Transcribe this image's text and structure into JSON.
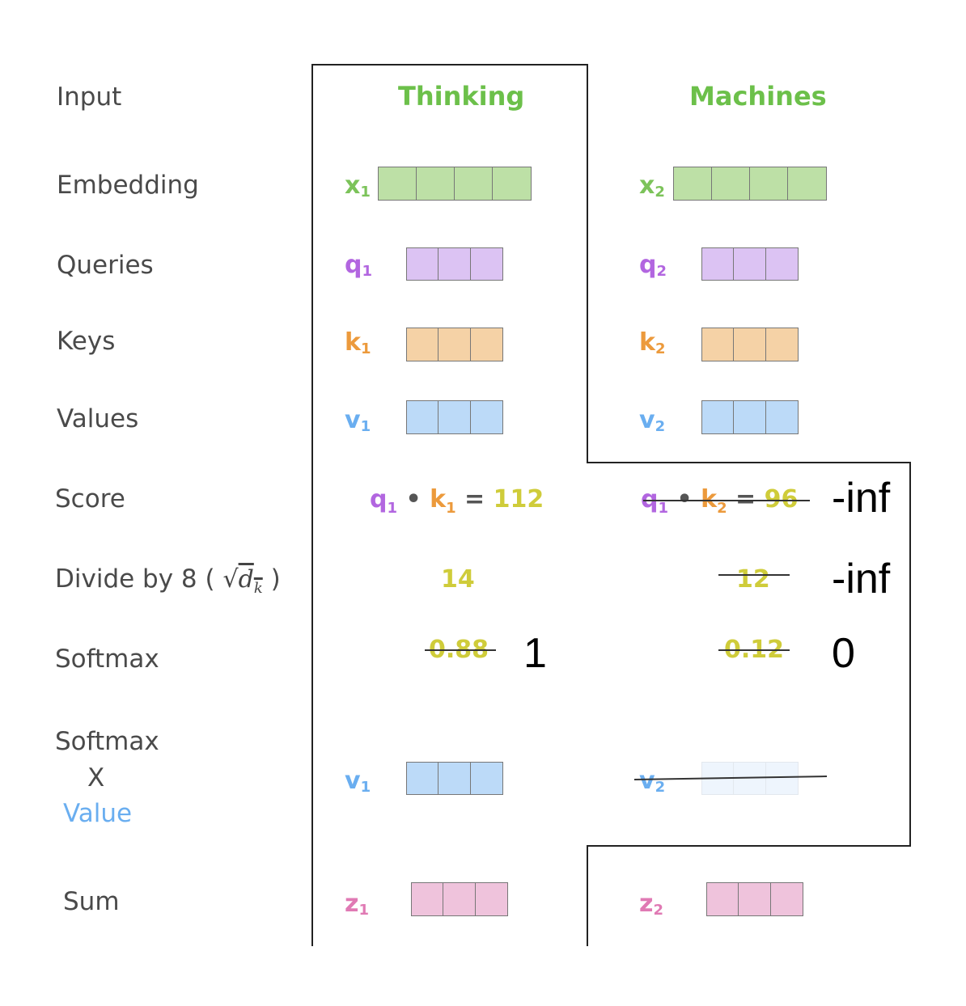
{
  "rows": {
    "input": "Input",
    "embedding": "Embedding",
    "queries": "Queries",
    "keys": "Keys",
    "values": "Values",
    "score": "Score",
    "divide_prefix": "Divide by 8 (",
    "divide_sqrt": "√",
    "divide_dk": "d",
    "divide_dk_sub": "k",
    "divide_suffix": ")",
    "softmax": "Softmax",
    "softmax_x_1": "Softmax",
    "softmax_x_2": "X",
    "softmax_x_3": "Value",
    "sum": "Sum"
  },
  "words": [
    "Thinking",
    "Machines"
  ],
  "symbols": {
    "x": "x",
    "q": "q",
    "k": "k",
    "v": "v",
    "z": "z",
    "sub1": "1",
    "sub2": "2"
  },
  "score": {
    "col1_eq": "=",
    "col1_value": "112",
    "col1_dot": "•",
    "col2_eq": "=",
    "col2_value": "96",
    "col2_dot": "•",
    "col2_replacement": "-inf"
  },
  "divide": {
    "col1_value": "14",
    "col2_value": "12",
    "col2_replacement": "-inf"
  },
  "softmax": {
    "col1_value": "0.88",
    "col1_replacement": "1",
    "col2_value": "0.12",
    "col2_replacement": "0"
  },
  "colors": {
    "green": "#bde0a6",
    "purple": "#dcc3f3",
    "orange": "#f5d2a6",
    "blue": "#bcdaf8",
    "blue_faded": "#eef5fd",
    "pink": "#efc3dc"
  }
}
